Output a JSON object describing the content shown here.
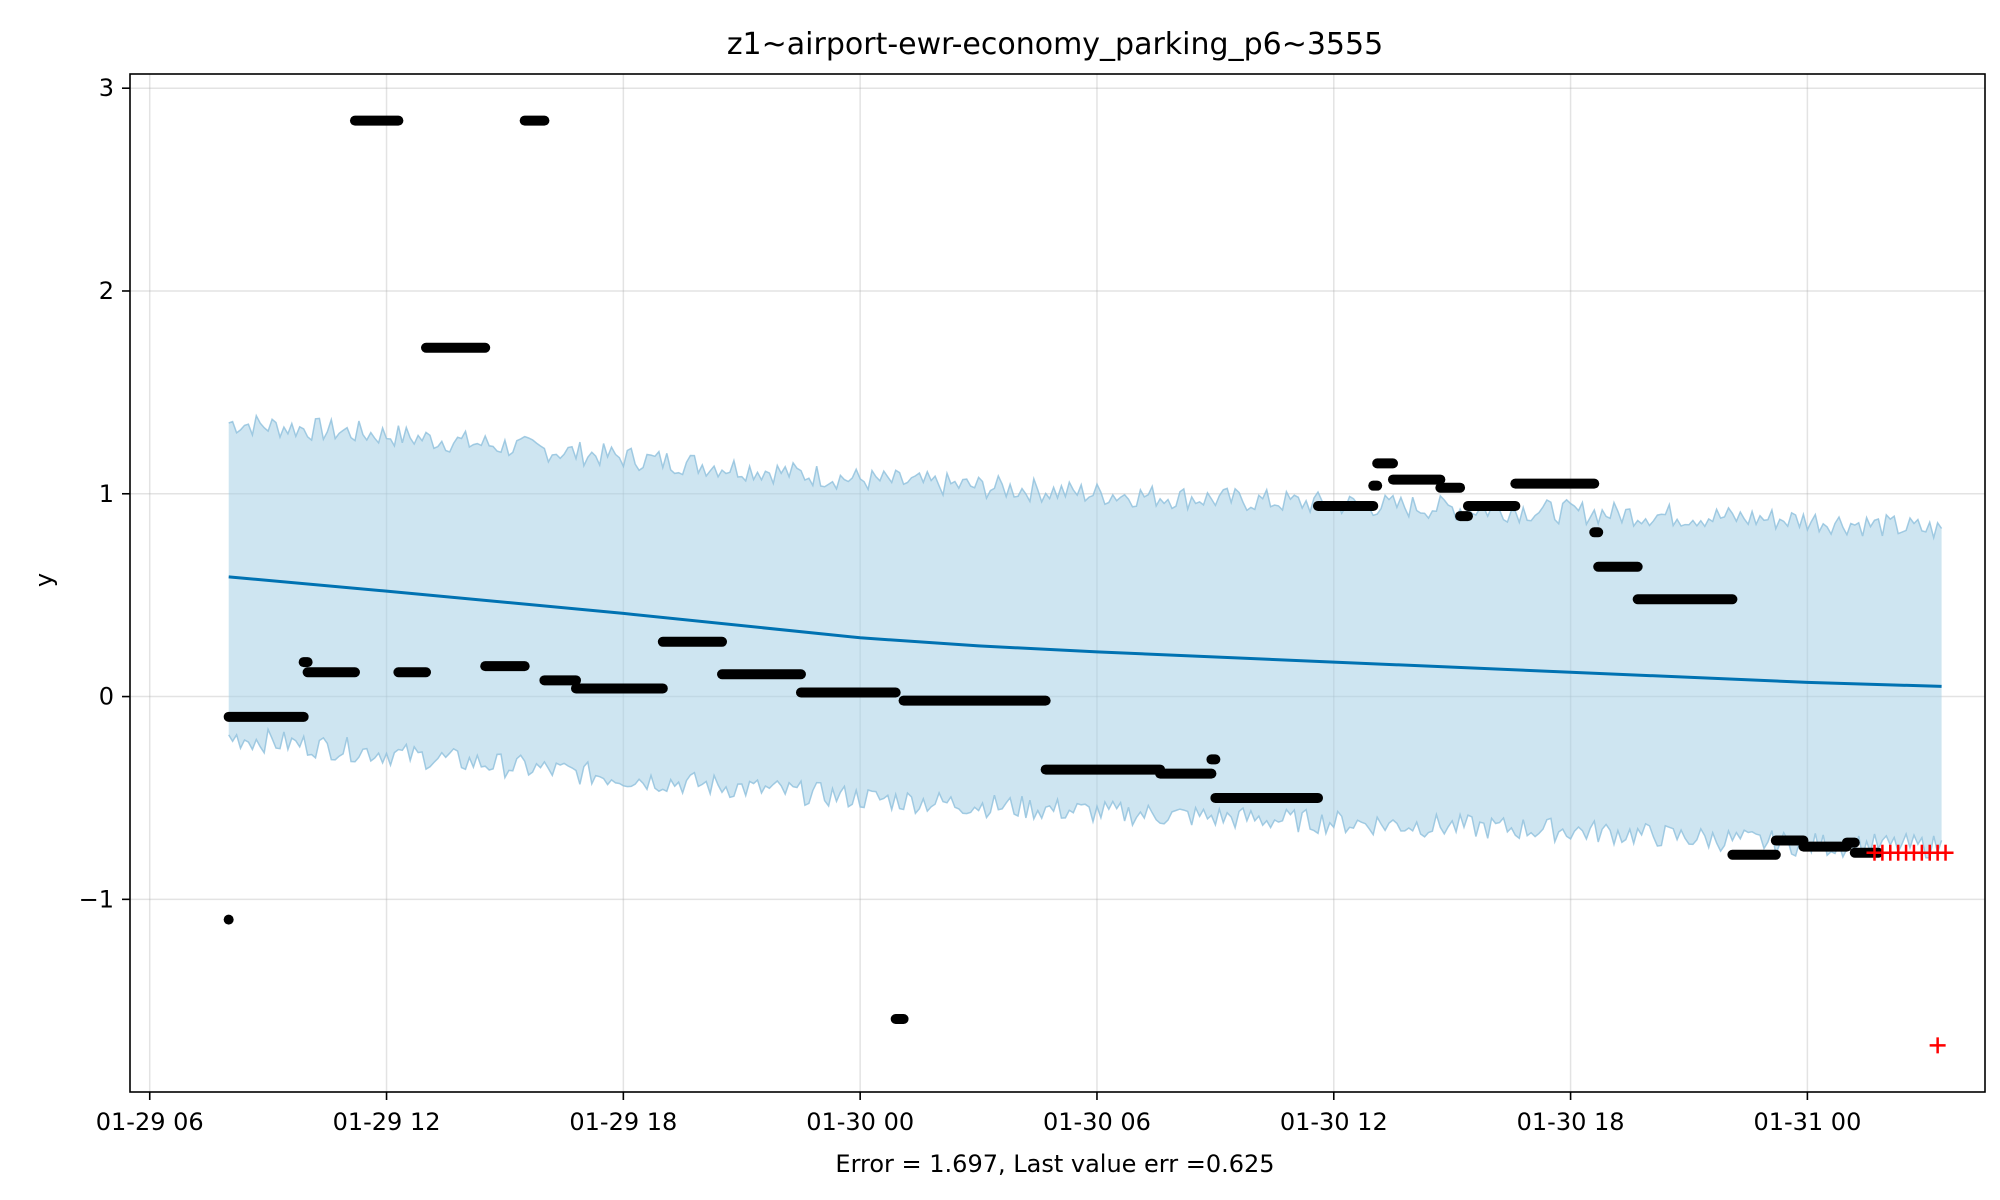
{
  "chart_data": {
    "type": "scatter",
    "title": "z1~airport-ewr-economy_parking_p6~3555",
    "xlabel": "Error = 1.697, Last value err =0.625",
    "ylabel": "y",
    "x_start": "2024-01-29 06:00",
    "xlim_hours": [
      -0.5,
      46.5
    ],
    "ylim": [
      -1.95,
      3.07
    ],
    "x_ticks": [
      {
        "hours": 0,
        "label": "01-29 06"
      },
      {
        "hours": 6,
        "label": "01-29 12"
      },
      {
        "hours": 12,
        "label": "01-29 18"
      },
      {
        "hours": 18,
        "label": "01-30 00"
      },
      {
        "hours": 24,
        "label": "01-30 06"
      },
      {
        "hours": 30,
        "label": "01-30 12"
      },
      {
        "hours": 36,
        "label": "01-30 18"
      },
      {
        "hours": 42,
        "label": "01-31 00"
      }
    ],
    "y_ticks": [
      {
        "value": -1,
        "label": "−1"
      },
      {
        "value": 0,
        "label": "0"
      },
      {
        "value": 1,
        "label": "1"
      },
      {
        "value": 2,
        "label": "2"
      },
      {
        "value": 3,
        "label": "3"
      }
    ],
    "grid": true,
    "colors": {
      "forecast": "#0072b2",
      "band": "#a6cfe6",
      "band_edge": "#8dbfdc",
      "observed": "#000000",
      "future": "#ff0000"
    },
    "forecast": {
      "x": [
        2.0,
        6.0,
        12.0,
        18.0,
        21.0,
        24.0,
        30.0,
        36.0,
        42.0,
        45.4
      ],
      "y": [
        0.59,
        0.52,
        0.41,
        0.29,
        0.25,
        0.22,
        0.17,
        0.12,
        0.07,
        0.05
      ]
    },
    "band": {
      "x": [
        2.0,
        6.0,
        12.0,
        18.0,
        24.0,
        30.0,
        36.0,
        42.0,
        45.4
      ],
      "upper": [
        1.35,
        1.29,
        1.18,
        1.07,
        1.0,
        0.95,
        0.91,
        0.87,
        0.82
      ],
      "lower": [
        -0.2,
        -0.28,
        -0.4,
        -0.5,
        -0.57,
        -0.62,
        -0.66,
        -0.73,
        -0.74
      ]
    },
    "observed_segments": [
      {
        "x0": 2.0,
        "x1": 3.9,
        "y": -0.1
      },
      {
        "x0": 3.9,
        "x1": 4.0,
        "y": 0.17
      },
      {
        "x0": 4.0,
        "x1": 5.2,
        "y": 0.12
      },
      {
        "x0": 5.2,
        "x1": 6.3,
        "y": 2.84
      },
      {
        "x0": 6.3,
        "x1": 7.0,
        "y": 0.12
      },
      {
        "x0": 7.0,
        "x1": 8.5,
        "y": 1.72
      },
      {
        "x0": 8.5,
        "x1": 9.5,
        "y": 0.15
      },
      {
        "x0": 9.5,
        "x1": 10.0,
        "y": 2.84
      },
      {
        "x0": 10.0,
        "x1": 10.8,
        "y": 0.08
      },
      {
        "x0": 10.8,
        "x1": 13.0,
        "y": 0.04
      },
      {
        "x0": 13.0,
        "x1": 14.5,
        "y": 0.27
      },
      {
        "x0": 14.5,
        "x1": 16.5,
        "y": 0.11
      },
      {
        "x0": 16.5,
        "x1": 18.9,
        "y": 0.02
      },
      {
        "x0": 18.9,
        "x1": 19.1,
        "y": -1.59
      },
      {
        "x0": 19.1,
        "x1": 22.7,
        "y": -0.02
      },
      {
        "x0": 22.7,
        "x1": 25.6,
        "y": -0.36
      },
      {
        "x0": 25.6,
        "x1": 26.9,
        "y": -0.38
      },
      {
        "x0": 26.9,
        "x1": 27.0,
        "y": -0.31
      },
      {
        "x0": 27.0,
        "x1": 29.6,
        "y": -0.5
      },
      {
        "x0": 29.6,
        "x1": 31.0,
        "y": 0.94
      },
      {
        "x0": 31.0,
        "x1": 31.1,
        "y": 1.04
      },
      {
        "x0": 31.1,
        "x1": 31.5,
        "y": 1.15
      },
      {
        "x0": 31.5,
        "x1": 32.7,
        "y": 1.07
      },
      {
        "x0": 32.7,
        "x1": 33.2,
        "y": 1.03
      },
      {
        "x0": 33.2,
        "x1": 33.4,
        "y": 0.89
      },
      {
        "x0": 33.4,
        "x1": 34.6,
        "y": 0.94
      },
      {
        "x0": 34.6,
        "x1": 36.6,
        "y": 1.05
      },
      {
        "x0": 36.6,
        "x1": 36.7,
        "y": 0.81
      },
      {
        "x0": 36.7,
        "x1": 37.7,
        "y": 0.64
      },
      {
        "x0": 37.7,
        "x1": 40.1,
        "y": 0.48
      },
      {
        "x0": 40.1,
        "x1": 41.2,
        "y": -0.78
      },
      {
        "x0": 41.2,
        "x1": 41.9,
        "y": -0.71
      },
      {
        "x0": 41.9,
        "x1": 43.0,
        "y": -0.74
      },
      {
        "x0": 43.0,
        "x1": 43.2,
        "y": -0.72
      },
      {
        "x0": 43.2,
        "x1": 43.8,
        "y": -0.77
      }
    ],
    "observed_points": [
      {
        "x": 2.0,
        "y": -1.1
      }
    ],
    "future_points": {
      "x": [
        43.7,
        43.9,
        44.1,
        44.3,
        44.5,
        44.7,
        44.9,
        45.1,
        45.3,
        45.5,
        45.3
      ],
      "y": [
        -0.77,
        -0.77,
        -0.77,
        -0.77,
        -0.77,
        -0.77,
        -0.77,
        -0.77,
        -0.77,
        -0.77,
        -1.72
      ]
    }
  }
}
